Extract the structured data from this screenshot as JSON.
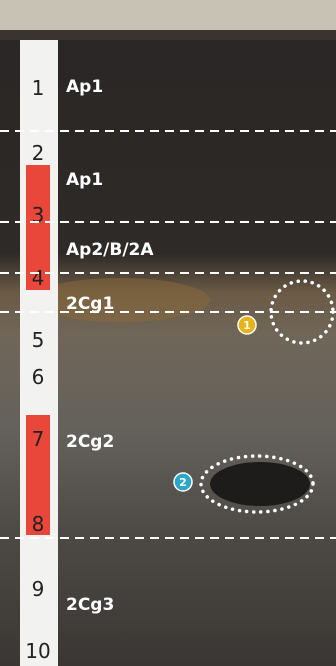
{
  "horizons": [
    "Ap1",
    "Ap1",
    "Ap2/B/2A",
    "2Cg1",
    "2Cg2",
    "2Cg3"
  ],
  "ruler": [
    "1",
    "2",
    "3",
    "4",
    "5",
    "6",
    "7",
    "8",
    "9",
    "10"
  ],
  "markers": [
    "1",
    "2"
  ]
}
